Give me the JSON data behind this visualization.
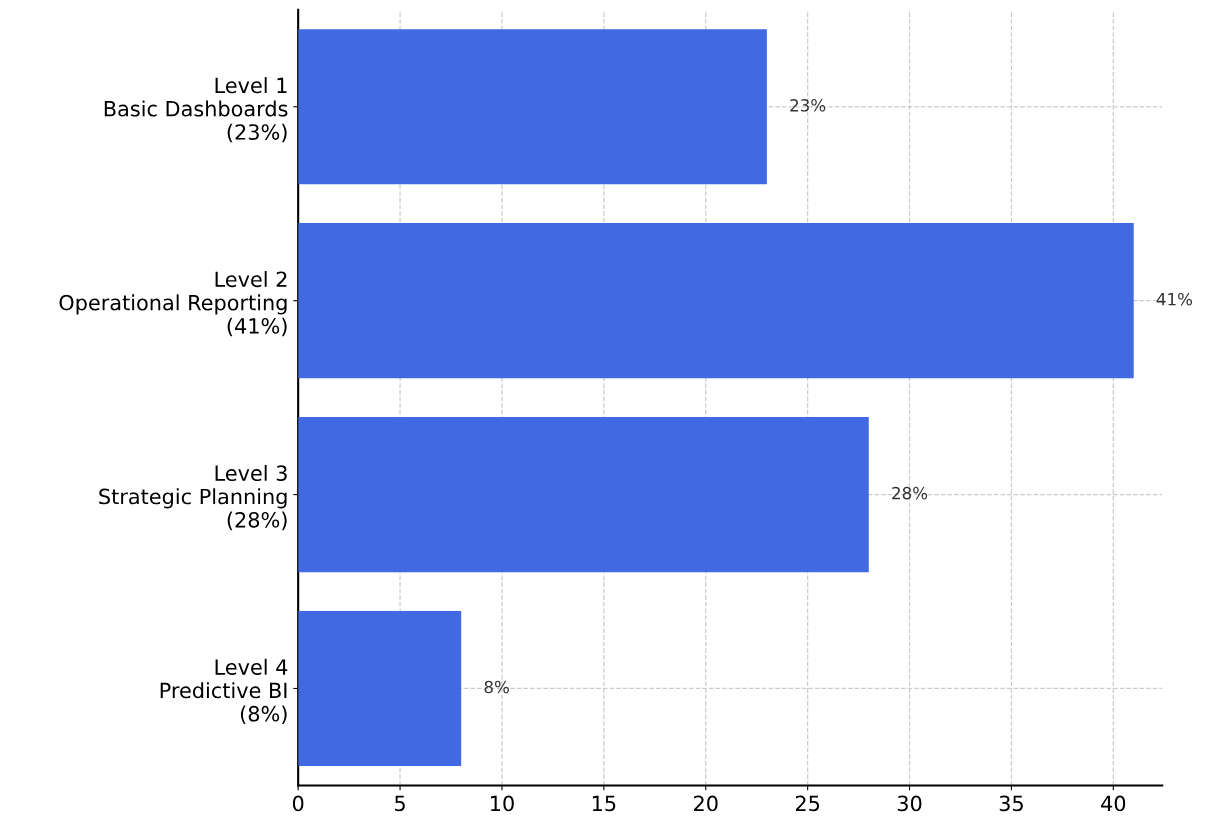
{
  "chart_data": {
    "type": "bar",
    "orientation": "horizontal",
    "categories": [
      "Level 1\nBasic Dashboards\n(23%)",
      "Level 2\nOperational Reporting\n(41%)",
      "Level 3\nStrategic Planning\n(28%)",
      "Level 4\nPredictive BI\n(8%)"
    ],
    "values": [
      23,
      41,
      28,
      8
    ],
    "color": "#4169e1",
    "value_labels": [
      "23%",
      "41%",
      "28%",
      "8%"
    ],
    "xlim": [
      0,
      42.4
    ],
    "xticks": [
      0,
      5,
      10,
      15,
      20,
      25,
      30,
      35,
      40
    ],
    "grid": true,
    "line_style": "dashed"
  }
}
